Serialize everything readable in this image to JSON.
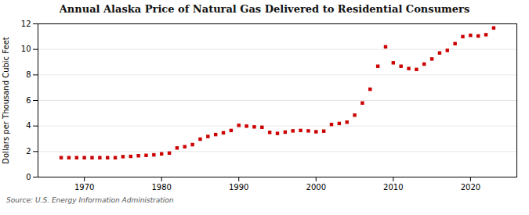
{
  "chart_data": {
    "type": "scatter",
    "title": "Annual Alaska Price of Natural Gas Delivered to Residential Consumers",
    "ylabel": "Dollars per Thousand Cubic Feet",
    "annotations": [
      "Source: U.S. Energy Information Administration"
    ],
    "color": "#cc0000",
    "marker": "square",
    "grid": "y",
    "xlim": [
      1964,
      2026
    ],
    "xticks": [
      1970,
      1980,
      1990,
      2000,
      2010,
      2020
    ],
    "ylim": [
      0,
      12
    ],
    "yticks": [
      0,
      2,
      4,
      6,
      8,
      10,
      12
    ],
    "x": [
      1967,
      1968,
      1969,
      1970,
      1971,
      1972,
      1973,
      1974,
      1975,
      1976,
      1977,
      1978,
      1979,
      1980,
      1981,
      1982,
      1983,
      1984,
      1985,
      1986,
      1987,
      1988,
      1989,
      1990,
      1991,
      1992,
      1993,
      1994,
      1995,
      1996,
      1997,
      1998,
      1999,
      2000,
      2001,
      2002,
      2003,
      2004,
      2005,
      2006,
      2007,
      2008,
      2009,
      2010,
      2011,
      2012,
      2013,
      2014,
      2015,
      2016,
      2017,
      2018,
      2019,
      2020,
      2021,
      2022,
      2023
    ],
    "values": [
      1.52,
      1.52,
      1.52,
      1.52,
      1.52,
      1.52,
      1.52,
      1.52,
      1.6,
      1.62,
      1.67,
      1.7,
      1.74,
      1.82,
      1.88,
      2.28,
      2.38,
      2.54,
      2.97,
      3.18,
      3.33,
      3.47,
      3.65,
      4.05,
      3.99,
      3.93,
      3.9,
      3.5,
      3.42,
      3.52,
      3.62,
      3.65,
      3.62,
      3.55,
      3.6,
      4.12,
      4.2,
      4.3,
      4.85,
      5.8,
      6.88,
      8.68,
      10.2,
      8.95,
      8.68,
      8.5,
      8.43,
      8.85,
      9.25,
      9.72,
      9.92,
      10.45,
      11.0,
      11.1,
      11.05,
      11.15,
      11.68
    ]
  }
}
